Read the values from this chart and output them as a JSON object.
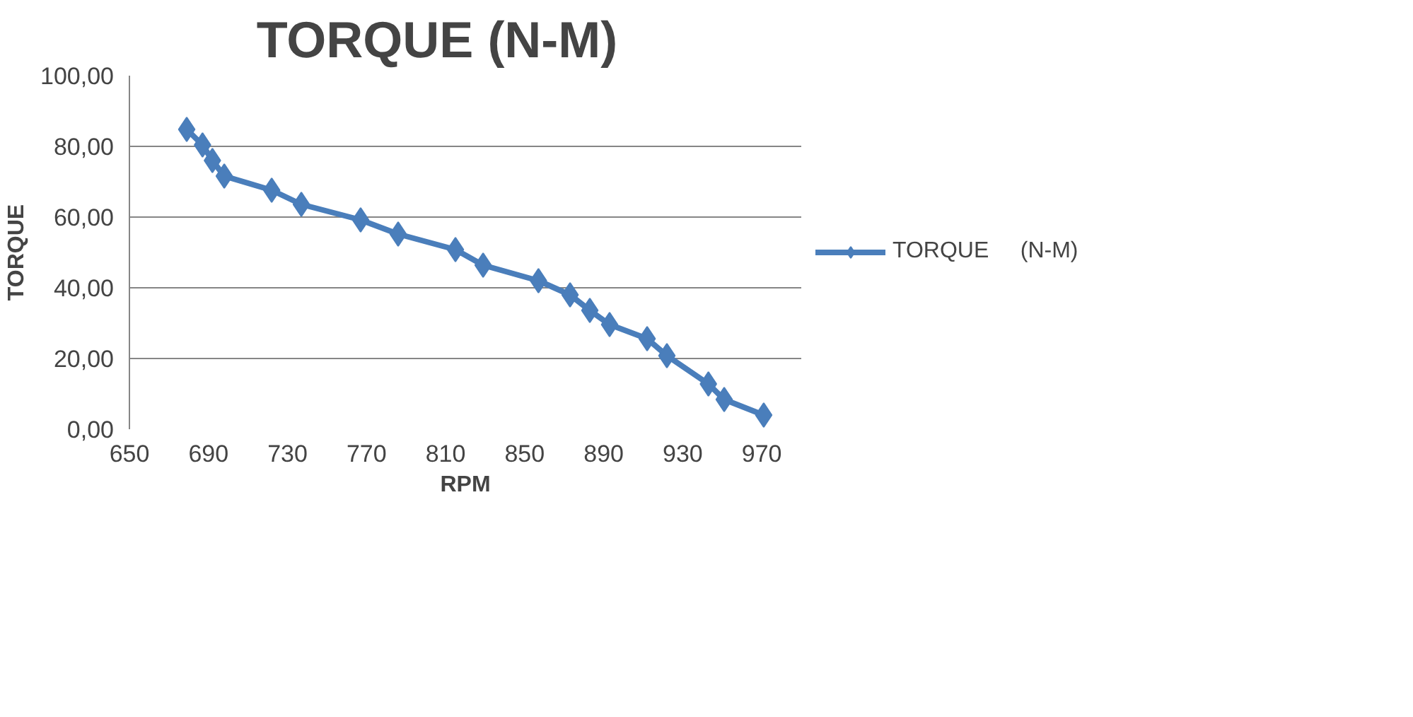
{
  "chart_data": {
    "type": "line",
    "title": "TORQUE     (N-M)",
    "xlabel": "RPM",
    "ylabel": "TORQUE",
    "xlim": [
      650,
      990
    ],
    "xticks": [
      650,
      690,
      730,
      770,
      810,
      850,
      890,
      930,
      970
    ],
    "ylim": [
      0,
      100
    ],
    "yticks": [
      {
        "value": 0,
        "label": "0,00"
      },
      {
        "value": 20,
        "label": "20,00"
      },
      {
        "value": 40,
        "label": "40,00"
      },
      {
        "value": 60,
        "label": "60,00"
      },
      {
        "value": 80,
        "label": "80,00"
      },
      {
        "value": 100,
        "label": "100,00"
      }
    ],
    "grid": "y",
    "legend": "right",
    "marker": "diamond",
    "line_style": "solid",
    "series": [
      {
        "name": "TORQUE     (N-M)",
        "color": "#4a7ebb",
        "x": [
          679,
          687,
          692,
          698,
          722,
          737,
          767,
          786,
          815,
          829,
          857,
          873,
          883,
          893,
          912,
          922,
          943,
          951,
          971
        ],
        "values": [
          84.8,
          80.4,
          76,
          71.6,
          67.6,
          63.6,
          59.2,
          55.2,
          50.8,
          46.4,
          42,
          38,
          33.6,
          29.6,
          25.6,
          20.8,
          12.8,
          8.4,
          4
        ]
      }
    ]
  }
}
